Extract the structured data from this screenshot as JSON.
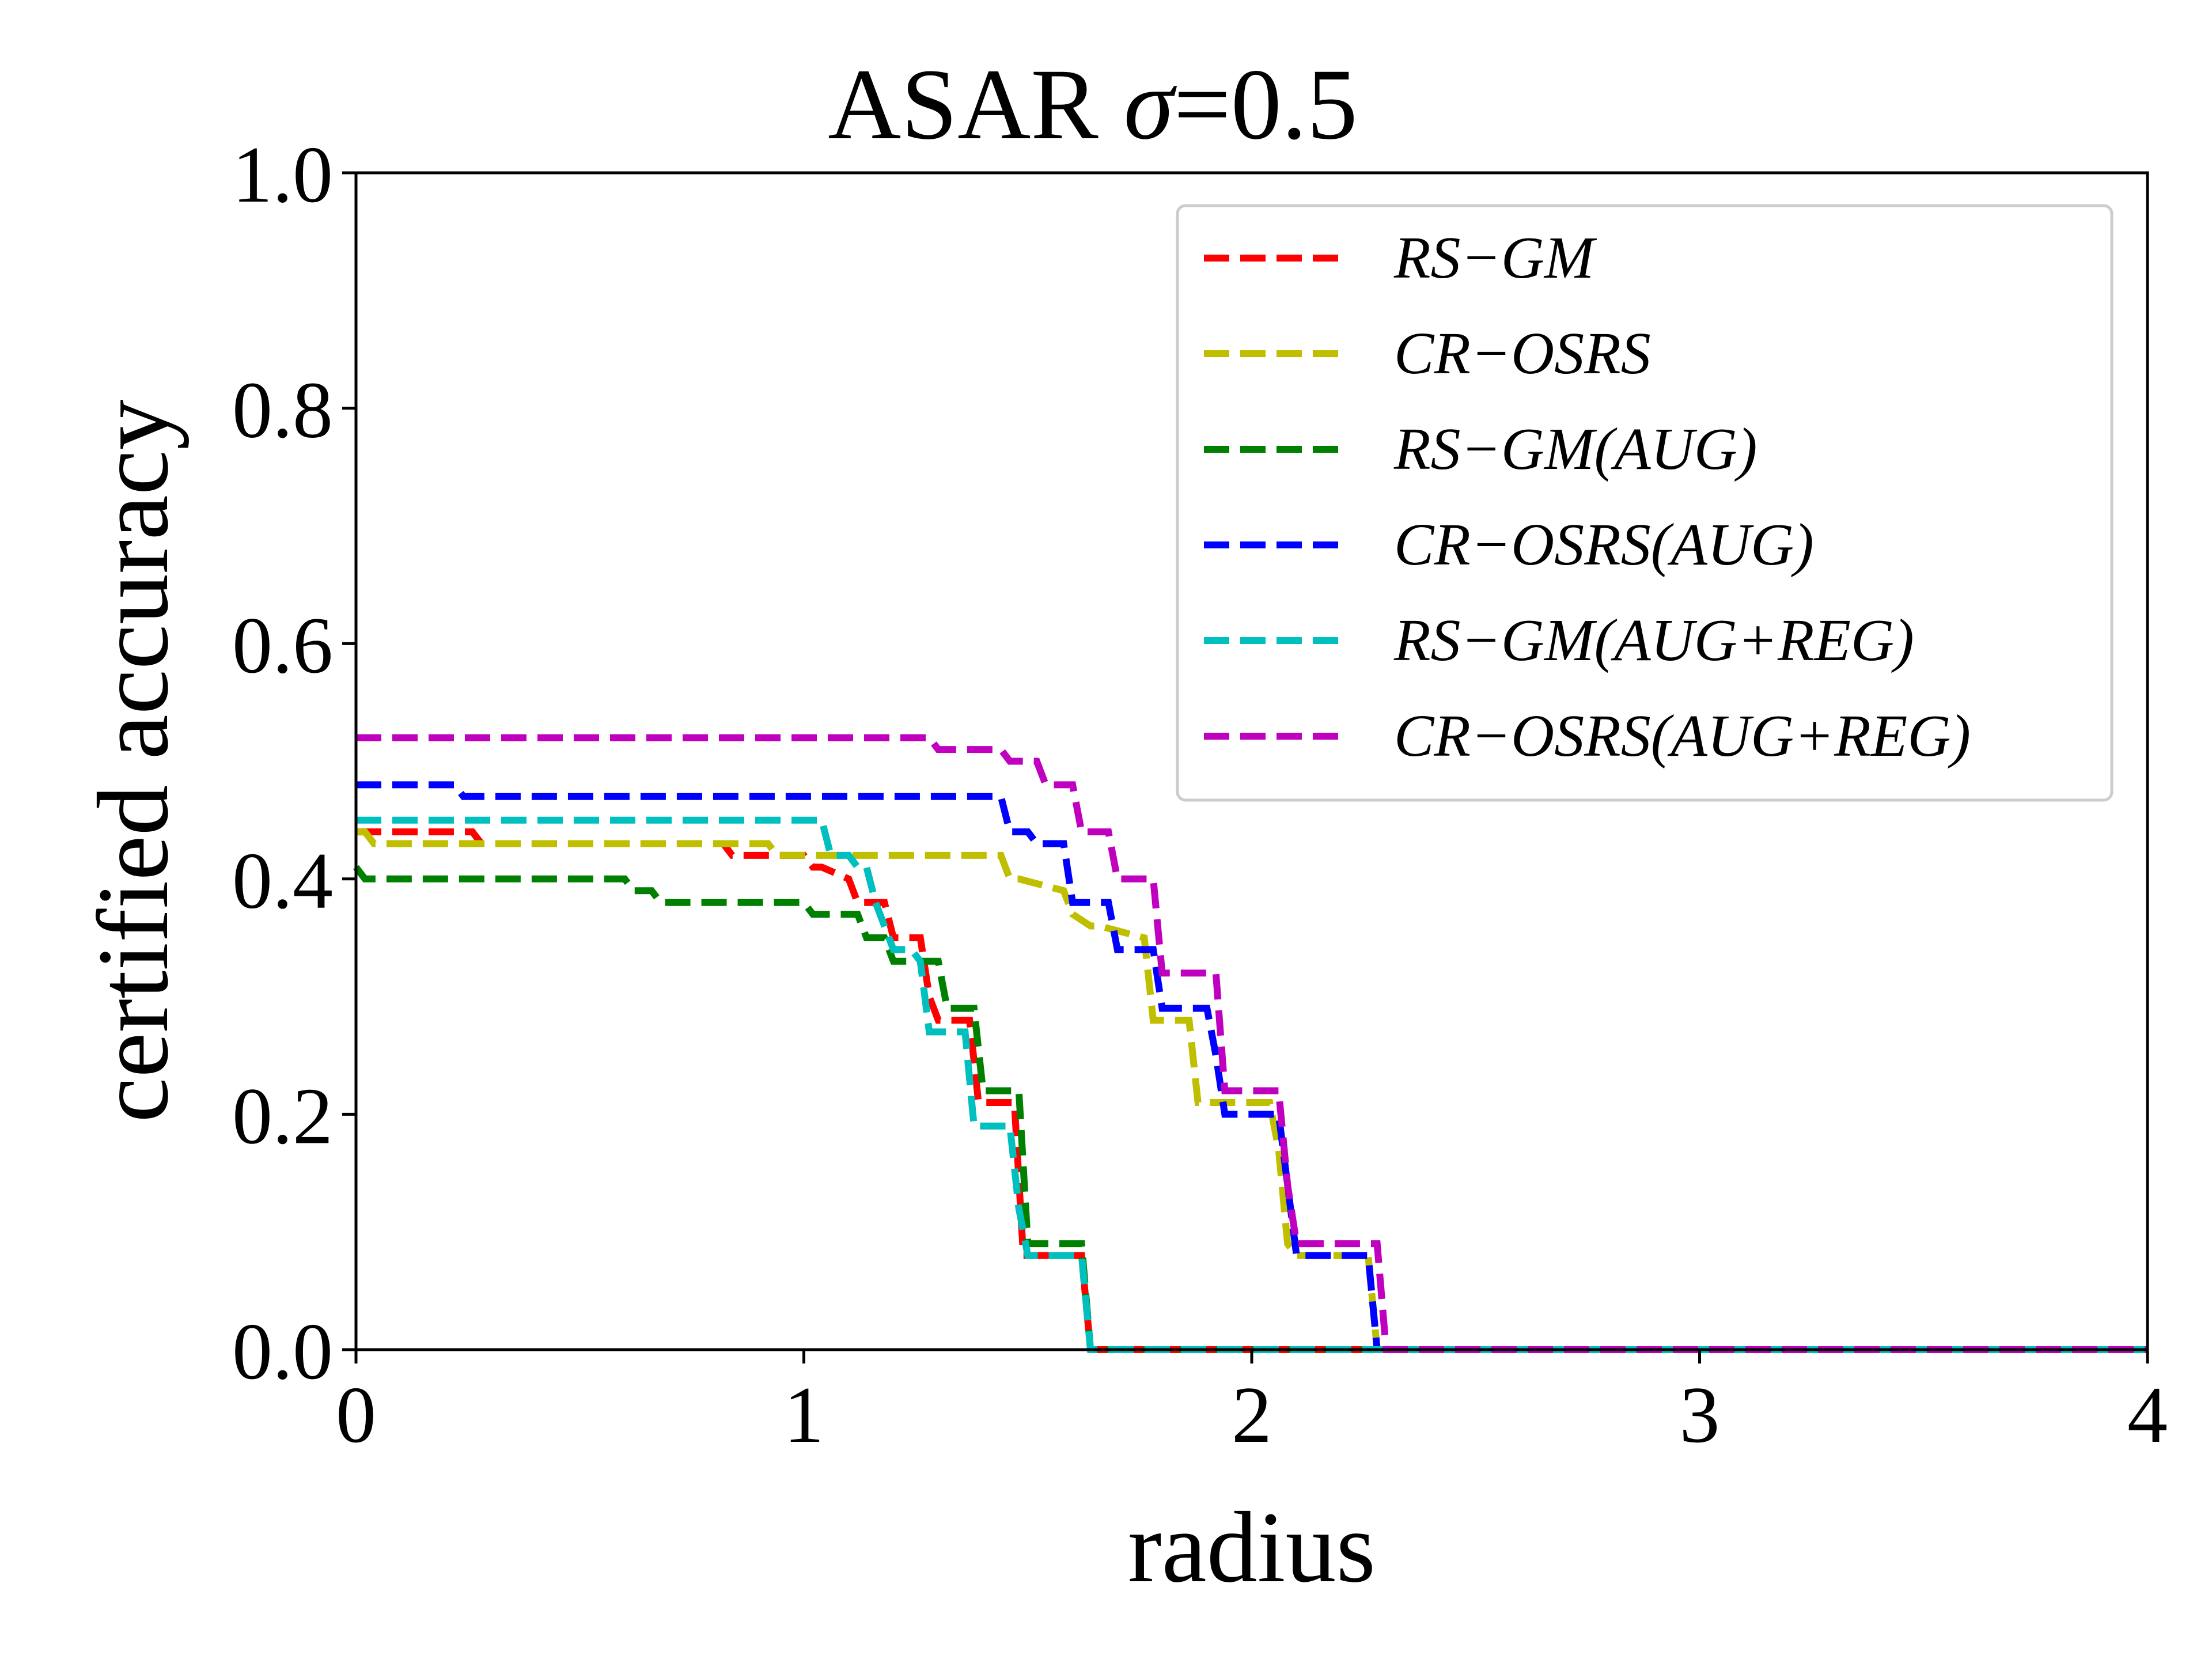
{
  "chart_data": {
    "type": "line",
    "title_main": "ASAR ",
    "title_sigma": "σ",
    "title_rest": "=0.5",
    "xlabel": "radius",
    "ylabel": "certified accuracy",
    "xlim": [
      0,
      4
    ],
    "ylim": [
      0,
      1
    ],
    "xticks": [
      0,
      1,
      2,
      3,
      4
    ],
    "xtick_labels": [
      "0",
      "1",
      "2",
      "3",
      "4"
    ],
    "yticks": [
      0,
      0.2,
      0.4,
      0.6,
      0.8,
      1.0
    ],
    "ytick_labels": [
      "0.0",
      "0.2",
      "0.4",
      "0.6",
      "0.8",
      "1.0"
    ],
    "grid": false,
    "legend_position": "top-right",
    "line_style": "dashed",
    "series": [
      {
        "name": "RS−GM",
        "color": "#ff0000",
        "x": [
          0,
          0.01,
          0.26,
          0.28,
          0.82,
          0.84,
          0.98,
          1.0,
          1.02,
          1.04,
          1.1,
          1.12,
          1.18,
          1.2,
          1.24,
          1.26,
          1.28,
          1.3,
          1.37,
          1.39,
          1.47,
          1.49,
          1.58,
          1.6,
          1.62,
          1.64,
          4.0
        ],
        "y": [
          0.44,
          0.44,
          0.44,
          0.43,
          0.43,
          0.42,
          0.42,
          0.42,
          0.41,
          0.41,
          0.4,
          0.38,
          0.38,
          0.35,
          0.35,
          0.35,
          0.3,
          0.28,
          0.28,
          0.21,
          0.21,
          0.08,
          0.08,
          0.08,
          0.08,
          0.0,
          0.0
        ]
      },
      {
        "name": "CR−OSRS",
        "color": "#bfbf00",
        "x": [
          0,
          0.02,
          0.04,
          0.92,
          0.94,
          1.44,
          1.46,
          1.48,
          1.58,
          1.6,
          1.64,
          1.66,
          1.76,
          1.78,
          1.86,
          1.88,
          2.04,
          2.06,
          2.08,
          2.1,
          2.26,
          2.28,
          4.0
        ],
        "y": [
          0.44,
          0.44,
          0.43,
          0.43,
          0.42,
          0.42,
          0.4,
          0.4,
          0.39,
          0.37,
          0.36,
          0.36,
          0.35,
          0.28,
          0.28,
          0.21,
          0.21,
          0.17,
          0.09,
          0.08,
          0.08,
          0.0,
          0.0
        ]
      },
      {
        "name": "RS−GM(AUG)",
        "color": "#008000",
        "x": [
          0,
          0.02,
          0.6,
          0.62,
          0.66,
          0.68,
          1.0,
          1.02,
          1.12,
          1.14,
          1.18,
          1.2,
          1.3,
          1.32,
          1.38,
          1.4,
          1.48,
          1.5,
          1.62,
          1.64,
          4.0
        ],
        "y": [
          0.41,
          0.4,
          0.4,
          0.39,
          0.39,
          0.38,
          0.38,
          0.37,
          0.37,
          0.35,
          0.35,
          0.33,
          0.33,
          0.29,
          0.29,
          0.22,
          0.22,
          0.09,
          0.09,
          0.0,
          0.0
        ]
      },
      {
        "name": "CR−OSRS(AUG)",
        "color": "#0000ff",
        "x": [
          0,
          0.22,
          0.24,
          1.44,
          1.46,
          1.5,
          1.52,
          1.58,
          1.6,
          1.68,
          1.7,
          1.78,
          1.8,
          1.9,
          1.92,
          1.94,
          2.06,
          2.08,
          2.1,
          2.26,
          2.28,
          4.0
        ],
        "y": [
          0.48,
          0.48,
          0.47,
          0.47,
          0.44,
          0.44,
          0.43,
          0.43,
          0.38,
          0.38,
          0.34,
          0.34,
          0.29,
          0.29,
          0.25,
          0.2,
          0.2,
          0.14,
          0.08,
          0.08,
          0.0,
          0.0
        ]
      },
      {
        "name": "RS−GM(AUG+REG)",
        "color": "#00bfbf",
        "x": [
          0,
          1.02,
          1.04,
          1.06,
          1.1,
          1.12,
          1.14,
          1.16,
          1.18,
          1.2,
          1.24,
          1.26,
          1.28,
          1.3,
          1.36,
          1.38,
          1.46,
          1.48,
          1.5,
          1.62,
          1.64,
          4.0
        ],
        "y": [
          0.45,
          0.45,
          0.45,
          0.42,
          0.42,
          0.41,
          0.41,
          0.38,
          0.36,
          0.34,
          0.34,
          0.33,
          0.27,
          0.27,
          0.27,
          0.19,
          0.19,
          0.12,
          0.08,
          0.08,
          0.0,
          0.0
        ]
      },
      {
        "name": "CR−OSRS(AUG+REG)",
        "color": "#bf00bf",
        "x": [
          0,
          1.28,
          1.3,
          1.44,
          1.46,
          1.52,
          1.54,
          1.6,
          1.62,
          1.68,
          1.7,
          1.78,
          1.8,
          1.92,
          1.94,
          2.06,
          2.08,
          2.1,
          2.28,
          2.3,
          4.0
        ],
        "y": [
          0.52,
          0.52,
          0.51,
          0.51,
          0.5,
          0.5,
          0.48,
          0.48,
          0.44,
          0.44,
          0.4,
          0.4,
          0.32,
          0.32,
          0.22,
          0.22,
          0.14,
          0.09,
          0.09,
          0.0,
          0.0
        ]
      }
    ]
  }
}
